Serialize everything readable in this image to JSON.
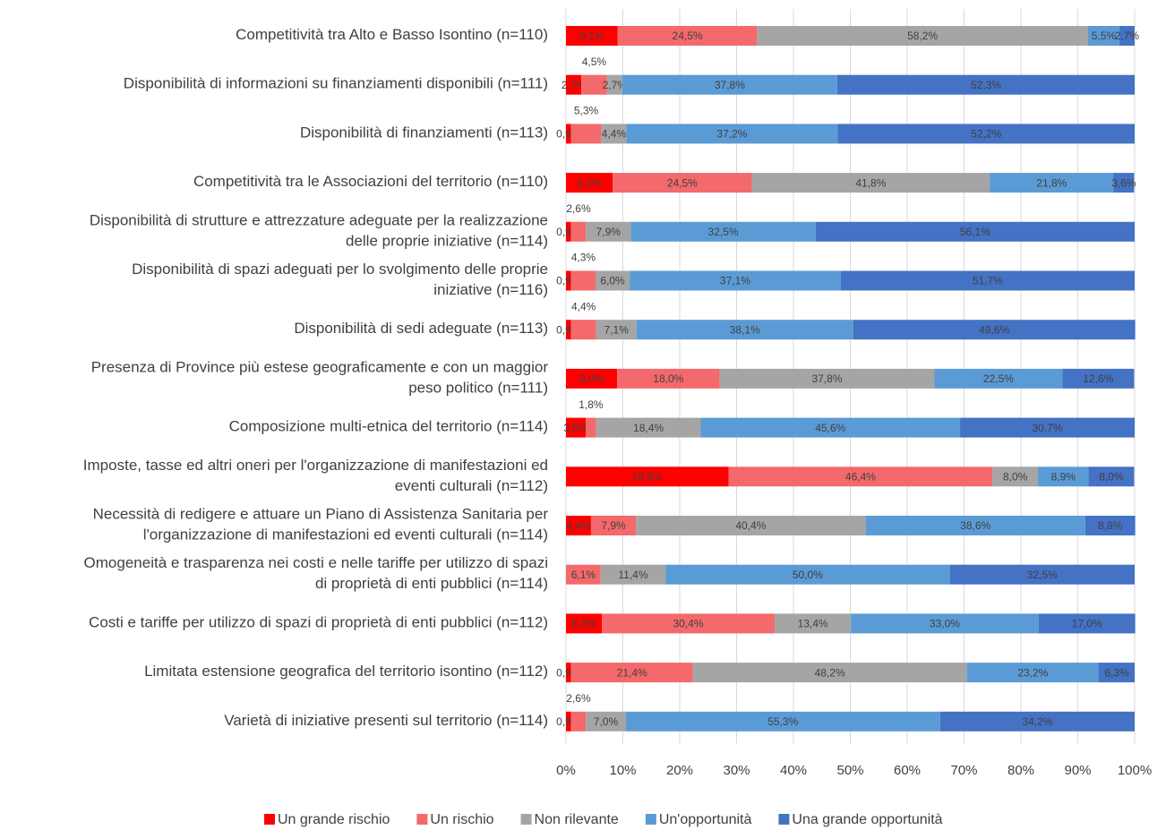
{
  "chart_data": {
    "type": "stacked-bar-horizontal",
    "categories": [
      "Competitività  tra Alto e Basso Isontino (n=110)",
      "Disponibilità di informazioni su finanziamenti disponibili (n=111)",
      "Disponibilità  di finanziamenti (n=113)",
      "Competitività  tra le Associazioni del territorio (n=110)",
      "Disponibilità  di strutture e attrezzature adeguate per la realizzazione\ndelle proprie iniziative (n=114)",
      "Disponibilità  di spazi adeguati per lo svolgimento delle proprie\niniziative (n=116)",
      "Disponibilità  di sedi adeguate (n=113)",
      "Presenza di Province più estese geograficamente e con un maggior\npeso politico (n=111)",
      "Composizione  multi-etnica del territorio (n=114)",
      "Imposte, tasse ed altri oneri per l'organizzazione di manifestazioni ed\neventi culturali (n=112)",
      "Necessità di redigere e attuare un Piano di Assistenza Sanitaria per\nl'organizzazione di manifestazioni ed eventi culturali (n=114)",
      "Omogeneità  e trasparenza nei costi e nelle tariffe per utilizzo di spazi\ndi proprietà  di enti pubblici (n=114)",
      "Costi e tariffe per utilizzo di spazi di proprietà  di enti pubblici (n=112)",
      "Limitata estensione geografica del territorio isontino (n=112)",
      "Varietà  di iniziative presenti sul territorio (n=114)"
    ],
    "series": [
      {
        "name": "Un grande rischio",
        "color": "#ff0000",
        "values": [
          9.1,
          2.7,
          0.9,
          8.2,
          0.9,
          0.9,
          0.9,
          9.0,
          3.5,
          28.6,
          4.4,
          null,
          6.3,
          0.9,
          0.9
        ],
        "value_labels": [
          "9,1%",
          "2,7%",
          "0,9%",
          "8,2%",
          "0,9%",
          "0,9%",
          "0,9%",
          "9,0%",
          "3,5%",
          "28,6%",
          "4,4%",
          null,
          "6,3%",
          "0,9%",
          "0,9%"
        ]
      },
      {
        "name": "Un rischio",
        "color": "#f4696b",
        "values": [
          24.5,
          4.5,
          5.3,
          24.5,
          2.6,
          4.3,
          4.4,
          18.0,
          1.8,
          46.4,
          7.9,
          6.1,
          30.4,
          21.4,
          2.6
        ],
        "value_labels": [
          "24,5%",
          "4,5%",
          "5,3%",
          "24,5%",
          "2,6%",
          "4,3%",
          "4,4%",
          "18,0%",
          "1,8%",
          "46,4%",
          "7,9%",
          "6,1%",
          "30,4%",
          "21,4%",
          "2,6%"
        ]
      },
      {
        "name": "Non rilevante",
        "color": "#a5a5a5",
        "values": [
          58.2,
          2.7,
          4.4,
          41.8,
          7.9,
          6.0,
          7.1,
          37.8,
          18.4,
          8.0,
          40.4,
          11.4,
          13.4,
          48.2,
          7.0
        ],
        "value_labels": [
          "58,2%",
          "2,7%",
          "4,4%",
          "41,8%",
          "7,9%",
          "6,0%",
          "7,1%",
          "37,8%",
          "18,4%",
          "8,0%",
          "40,4%",
          "11,4%",
          "13,4%",
          "48,2%",
          "7,0%"
        ]
      },
      {
        "name": "Un'opportunità",
        "color": "#5b9bd5",
        "values": [
          5.5,
          37.8,
          37.2,
          21.8,
          32.5,
          37.1,
          38.1,
          22.5,
          45.6,
          8.9,
          38.6,
          50.0,
          33.0,
          23.2,
          55.3
        ],
        "value_labels": [
          "5,5%",
          "37,8%",
          "37,2%",
          "21,8%",
          "32,5%",
          "37,1%",
          "38,1%",
          "22,5%",
          "45,6%",
          "8,9%",
          "38,6%",
          "50,0%",
          "33,0%",
          "23,2%",
          "55,3%"
        ]
      },
      {
        "name": "Una grande opportunità",
        "color": "#4472c4",
        "values": [
          2.7,
          52.3,
          52.2,
          3.6,
          56.1,
          51.7,
          49.6,
          12.6,
          30.7,
          8.0,
          8.8,
          32.5,
          17.0,
          6.3,
          34.2
        ],
        "value_labels": [
          "2,7%",
          "52,3%",
          "52,2%",
          "3,6%",
          "56,1%",
          "51,7%",
          "49,6%",
          "12,6%",
          "30,7%",
          "8,0%",
          "8,8%",
          "32,5%",
          "17,0%",
          "6,3%",
          "34,2%"
        ]
      }
    ],
    "xlim": [
      0,
      100
    ],
    "xticks": [
      {
        "value": 0,
        "label": "0%"
      },
      {
        "value": 10,
        "label": "10%"
      },
      {
        "value": 20,
        "label": "20%"
      },
      {
        "value": 30,
        "label": "30%"
      },
      {
        "value": 40,
        "label": "40%"
      },
      {
        "value": 50,
        "label": "50%"
      },
      {
        "value": 60,
        "label": "60%"
      },
      {
        "value": 70,
        "label": "70%"
      },
      {
        "value": 80,
        "label": "80%"
      },
      {
        "value": 90,
        "label": "90%"
      },
      {
        "value": 100,
        "label": "100%"
      }
    ],
    "grid": true,
    "legend": "bottom"
  }
}
